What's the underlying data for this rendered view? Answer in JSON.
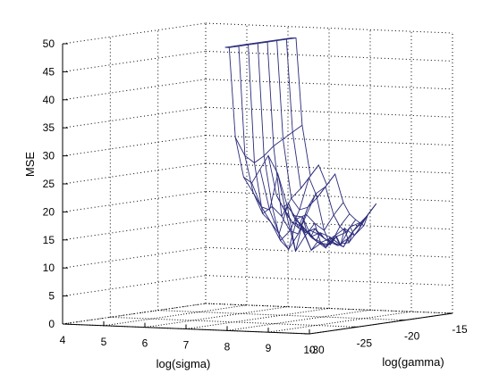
{
  "chart_data": {
    "type": "surface",
    "title": "",
    "xlabel": "log(sigma)",
    "ylabel": "log(gamma)",
    "zlabel": "MSE",
    "x_ticks": [
      "4",
      "5",
      "6",
      "7",
      "8",
      "9",
      "10"
    ],
    "y_ticks": [
      "-30",
      "-25",
      "-20",
      "-15"
    ],
    "z_ticks": [
      "0",
      "5",
      "10",
      "15",
      "20",
      "25",
      "30",
      "35",
      "40",
      "45",
      "50"
    ],
    "xlim": [
      4,
      10
    ],
    "ylim": [
      -30,
      -15
    ],
    "zlim": [
      0,
      50
    ],
    "grid": true,
    "line_color": "#2a2a7a",
    "series": [
      {
        "x": [
          7.95,
          8.05,
          8.2,
          8.4,
          8.6,
          8.8,
          9.0,
          9.2,
          9.35,
          9.5,
          9.6,
          9.7,
          9.8,
          9.9,
          10.0
        ],
        "y": [
          -30,
          -30,
          -30,
          -30,
          -30,
          -30,
          -30,
          -30,
          -30,
          -30,
          -30,
          -30,
          -30,
          -30,
          -30
        ],
        "z": [
          50.5,
          50.5,
          34.5,
          27.5,
          26.5,
          29.0,
          31.5,
          24.5,
          22.5,
          23.0,
          21.0,
          20.0,
          19.5,
          18.0,
          18.5
        ]
      },
      {
        "x": [
          7.95,
          8.05,
          8.2,
          8.4,
          8.6,
          8.8,
          9.0,
          9.2,
          9.35,
          9.5,
          9.6,
          9.7,
          9.8,
          9.9,
          10.0
        ],
        "y": [
          -29,
          -29,
          -29,
          -29,
          -29,
          -29,
          -29,
          -29,
          -29,
          -29,
          -29,
          -29,
          -29,
          -29,
          -29
        ],
        "z": [
          50.5,
          50.5,
          31.0,
          24.5,
          22.0,
          21.5,
          28.0,
          21.0,
          19.5,
          18.5,
          20.5,
          18.0,
          17.0,
          18.5,
          17.5
        ]
      },
      {
        "x": [
          7.95,
          8.05,
          8.2,
          8.4,
          8.6,
          8.8,
          9.0,
          9.2,
          9.35,
          9.5,
          9.6,
          9.7,
          9.8,
          9.9,
          10.0
        ],
        "y": [
          -28,
          -28,
          -28,
          -28,
          -28,
          -28,
          -28,
          -28,
          -28,
          -28,
          -28,
          -28,
          -28,
          -28,
          -28
        ],
        "z": [
          50.5,
          50.5,
          29.5,
          20.5,
          19.0,
          17.0,
          22.0,
          14.0,
          18.5,
          17.5,
          16.5,
          16.0,
          17.5,
          16.5,
          16.0
        ]
      },
      {
        "x": [
          7.95,
          8.05,
          8.2,
          8.4,
          8.6,
          8.8,
          9.0,
          9.2,
          9.35,
          9.5,
          9.6,
          9.7,
          9.8,
          9.9,
          10.0
        ],
        "y": [
          -27,
          -27,
          -27,
          -27,
          -27,
          -27,
          -27,
          -27,
          -27,
          -27,
          -27,
          -27,
          -27,
          -27,
          -27
        ],
        "z": [
          50.5,
          50.5,
          30.5,
          21.5,
          15.5,
          14.0,
          19.5,
          16.5,
          14.0,
          15.5,
          15.5,
          14.5,
          16.5,
          15.5,
          15.0
        ]
      },
      {
        "x": [
          7.95,
          8.05,
          8.2,
          8.4,
          8.6,
          8.8,
          9.0,
          9.2,
          9.35,
          9.5,
          9.6,
          9.7,
          9.8,
          9.9,
          10.0
        ],
        "y": [
          -26,
          -26,
          -26,
          -26,
          -26,
          -26,
          -26,
          -26,
          -26,
          -26,
          -26,
          -26,
          -26,
          -26,
          -26
        ],
        "z": [
          50.5,
          50.5,
          32.0,
          19.5,
          17.0,
          16.5,
          20.0,
          18.5,
          15.0,
          14.5,
          16.0,
          16.5,
          15.0,
          14.5,
          16.0
        ]
      },
      {
        "x": [
          7.95,
          8.05,
          8.2,
          8.4,
          8.6,
          8.8,
          9.0,
          9.2,
          9.35,
          9.5,
          9.6,
          9.7,
          9.8,
          9.9,
          10.0
        ],
        "y": [
          -25,
          -25,
          -25,
          -25,
          -25,
          -25,
          -25,
          -25,
          -25,
          -25,
          -25,
          -25,
          -25,
          -25,
          -25
        ],
        "z": [
          50.5,
          50.5,
          33.0,
          22.5,
          20.5,
          21.0,
          23.5,
          17.0,
          14.5,
          16.0,
          14.5,
          17.5,
          15.0,
          17.0,
          18.0
        ]
      },
      {
        "x": [
          7.95,
          8.05,
          8.2,
          8.4,
          8.6,
          8.8,
          9.0,
          9.2,
          9.35,
          9.5,
          9.6,
          9.7,
          9.8,
          9.9,
          10.0
        ],
        "y": [
          -24,
          -24,
          -24,
          -24,
          -24,
          -24,
          -24,
          -24,
          -24,
          -24,
          -24,
          -24,
          -24,
          -24,
          -24
        ],
        "z": [
          50.5,
          50.5,
          34.0,
          24.0,
          26.0,
          22.5,
          24.5,
          19.5,
          17.5,
          16.5,
          17.5,
          16.0,
          17.0,
          18.5,
          19.5
        ]
      },
      {
        "x": [
          7.95,
          8.05,
          8.2,
          8.4,
          8.6,
          8.8,
          9.0,
          9.2,
          9.35,
          9.5,
          9.6,
          9.7,
          9.8,
          9.9,
          10.0
        ],
        "y": [
          -23,
          -23,
          -23,
          -23,
          -23,
          -23,
          -23,
          -23,
          -23,
          -23,
          -23,
          -23,
          -23,
          -23,
          -23
        ],
        "z": [
          50.5,
          50.5,
          35.0,
          26.0,
          28.0,
          24.5,
          26.5,
          21.5,
          19.5,
          18.5,
          18.0,
          17.5,
          19.5,
          20.5,
          21.5
        ]
      }
    ]
  }
}
